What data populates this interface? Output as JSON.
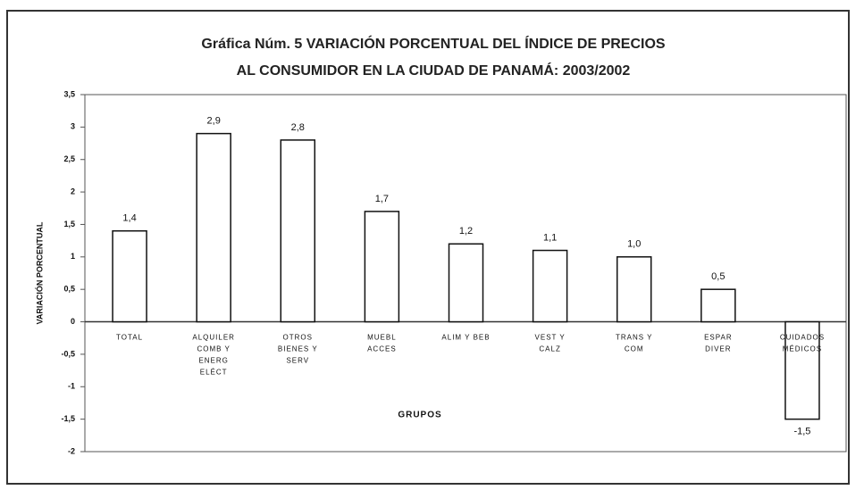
{
  "chart_data": {
    "type": "bar",
    "title": "Gráfica Núm. 5 VARIACIÓN PORCENTUAL DEL ÍNDICE DE PRECIOS",
    "subtitle": "AL CONSUMIDOR EN LA CIUDAD DE PANAMÁ: 2003/2002",
    "x_label": "GRUPOS",
    "y_label": "VARIACIÓN PORCENTUAL",
    "categories": [
      [
        "TOTAL"
      ],
      [
        "ALQUILER",
        "COMB Y",
        "ENERG",
        "ELÉCT"
      ],
      [
        "OTROS",
        "BIENES Y",
        "SERV"
      ],
      [
        "MUEBL",
        "ACCES"
      ],
      [
        "ALIM Y BEB"
      ],
      [
        "VEST Y",
        "CALZ"
      ],
      [
        "TRANS Y",
        "COM"
      ],
      [
        "ESPAR",
        "DIVER"
      ],
      [
        "CUIDADOS",
        "MÉDICOS"
      ]
    ],
    "values": [
      1.4,
      2.9,
      2.8,
      1.7,
      1.2,
      1.1,
      1.0,
      0.5,
      -1.5
    ],
    "value_labels": [
      "1,4",
      "2,9",
      "2,8",
      "1,7",
      "1,2",
      "1,1",
      "1,0",
      "0,5",
      "-1,5"
    ],
    "color": "#ffffff",
    "ylim": [
      -2,
      3.5
    ],
    "yticks": [
      -2,
      {
        "value": -1.5,
        "label": "-1,5"
      },
      -1,
      {
        "value": -0.5,
        "label": "-0,5"
      },
      0,
      {
        "value": 0.5,
        "label": "0,5"
      },
      1,
      {
        "value": 1.5,
        "label": "1,5"
      },
      2,
      {
        "value": 2.5,
        "label": "2,5"
      },
      3,
      {
        "value": 3.5,
        "label": "3,5"
      }
    ]
  }
}
